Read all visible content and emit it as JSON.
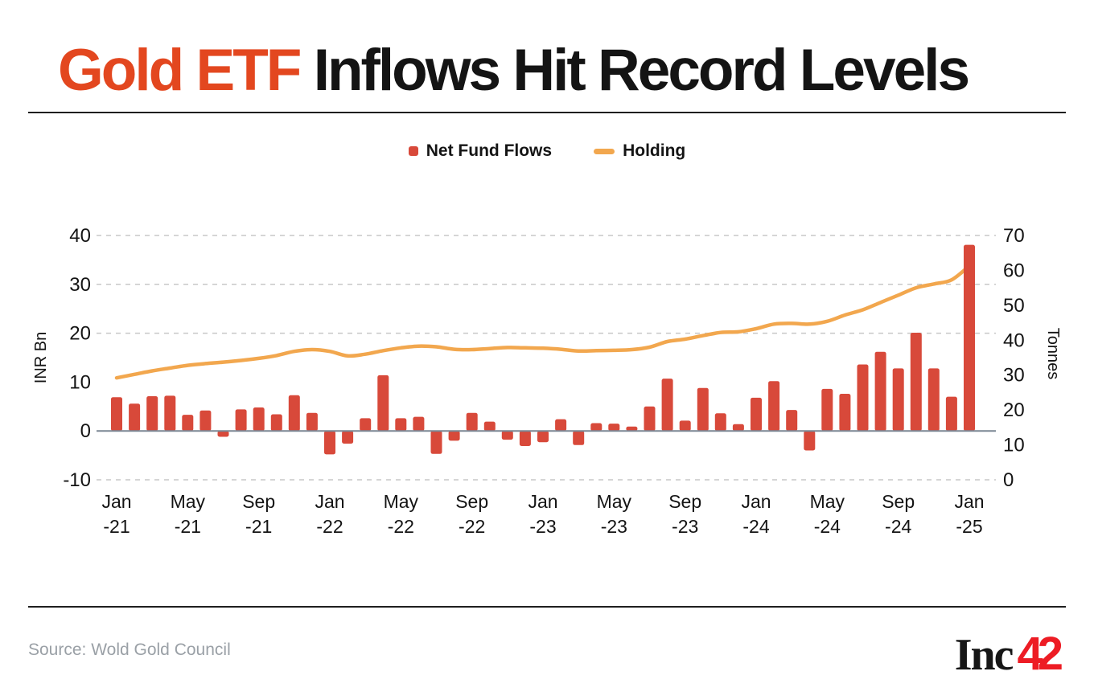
{
  "header": {
    "title_highlight": "Gold ETF",
    "title_rest": " Inflows Hit Record Levels"
  },
  "legend": [
    {
      "label": "Net Fund Flows",
      "marker": "square",
      "color": "#d8493a"
    },
    {
      "label": "Holding",
      "marker": "dash",
      "color": "#f2a74e"
    }
  ],
  "chart_data": {
    "type": "bar",
    "x": [
      "Jan-21",
      "Feb-21",
      "Mar-21",
      "Apr-21",
      "May-21",
      "Jun-21",
      "Jul-21",
      "Aug-21",
      "Sep-21",
      "Oct-21",
      "Nov-21",
      "Dec-21",
      "Jan-22",
      "Feb-22",
      "Mar-22",
      "Apr-22",
      "May-22",
      "Jun-22",
      "Jul-22",
      "Aug-22",
      "Sep-22",
      "Oct-22",
      "Nov-22",
      "Dec-22",
      "Jan-23",
      "Feb-23",
      "Mar-23",
      "Apr-23",
      "May-23",
      "Jun-23",
      "Jul-23",
      "Aug-23",
      "Sep-23",
      "Oct-23",
      "Nov-23",
      "Dec-23",
      "Jan-24",
      "Feb-24",
      "Mar-24",
      "Apr-24",
      "May-24",
      "Jun-24",
      "Jul-24",
      "Aug-24",
      "Sep-24",
      "Oct-24",
      "Nov-24",
      "Dec-24",
      "Jan-25"
    ],
    "series": [
      {
        "name": "Net Fund Flows",
        "type": "bar",
        "axis": "left",
        "color": "#d8493a",
        "values": [
          6.9,
          5.6,
          7.1,
          7.2,
          3.3,
          4.2,
          -1.2,
          4.4,
          4.8,
          3.4,
          7.3,
          3.7,
          -4.8,
          -2.6,
          2.6,
          11.4,
          2.6,
          2.9,
          -4.7,
          -2.0,
          3.7,
          1.9,
          -1.8,
          -3.1,
          -2.3,
          2.4,
          -2.9,
          1.6,
          1.5,
          0.9,
          5.0,
          10.7,
          2.1,
          8.8,
          3.6,
          1.4,
          6.8,
          10.2,
          4.3,
          -4.0,
          8.6,
          7.6,
          13.6,
          16.2,
          12.8,
          20.1,
          12.8,
          7.0,
          38.1
        ]
      },
      {
        "name": "Holding",
        "type": "line",
        "axis": "right",
        "color": "#f2a74e",
        "values": [
          29.2,
          30.2,
          31.2,
          32.0,
          32.8,
          33.3,
          33.7,
          34.2,
          34.8,
          35.6,
          36.8,
          37.3,
          36.8,
          35.5,
          36.0,
          37.0,
          37.8,
          38.3,
          38.1,
          37.4,
          37.3,
          37.6,
          37.9,
          37.8,
          37.7,
          37.4,
          36.9,
          37.0,
          37.1,
          37.3,
          38.0,
          39.6,
          40.3,
          41.3,
          42.2,
          42.4,
          43.3,
          44.6,
          44.8,
          44.6,
          45.4,
          47.2,
          48.7,
          50.8,
          52.9,
          55.0,
          56.1,
          57.3,
          61.3
        ]
      }
    ],
    "left_axis": {
      "label": "INR Bn",
      "ticks": [
        40,
        30,
        20,
        10,
        0,
        -10
      ],
      "range": [
        -10,
        40
      ]
    },
    "right_axis": {
      "label": "Tonnes",
      "ticks": [
        70,
        60,
        50,
        40,
        30,
        20,
        10,
        0
      ],
      "range": [
        0,
        70
      ]
    },
    "x_tick_every": 4,
    "x_tick_labels": [
      [
        "Jan",
        "-21"
      ],
      [
        "May",
        "-21"
      ],
      [
        "Sep",
        "-21"
      ],
      [
        "Jan",
        "-22"
      ],
      [
        "May",
        "-22"
      ],
      [
        "Sep",
        "-22"
      ],
      [
        "Jan",
        "-23"
      ],
      [
        "May",
        "-23"
      ],
      [
        "Sep",
        "-23"
      ],
      [
        "Jan",
        "-24"
      ],
      [
        "May",
        "-24"
      ],
      [
        "Sep",
        "-24"
      ],
      [
        "Jan",
        "-25"
      ]
    ],
    "gridlines_at": [
      40,
      30,
      20,
      -10
    ],
    "grid": "dashed",
    "legend_position": "top"
  },
  "colors": {
    "title_accent": "#e3471f",
    "bar": "#d8493a",
    "line": "#f2a74e",
    "grid": "#c7c7c7",
    "zero_line": "#7b8794",
    "text": "#141414",
    "source_text": "#9aa0a6",
    "logo_red": "#ed1c24"
  },
  "footer": {
    "source": "Source: Wold Gold Council",
    "logo_black": "Inc",
    "logo_red": "42"
  }
}
